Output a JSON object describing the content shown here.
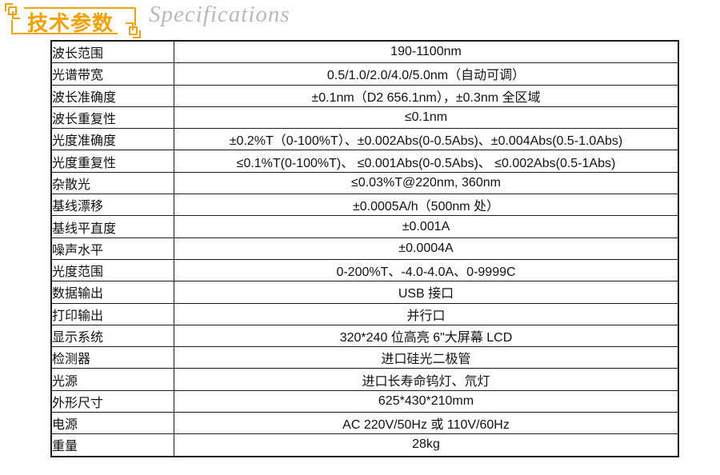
{
  "header": {
    "title": "技术参数",
    "subtitle": "Specifications",
    "accent_color": "#F8A000",
    "subtitle_color": "#b9b9b9"
  },
  "table": {
    "rows": [
      {
        "label": "波长范围",
        "value": "190-1100nm"
      },
      {
        "label": "光谱带宽",
        "value": "0.5/1.0/2.0/4.0/5.0nm（自动可调）"
      },
      {
        "label": "波长准确度",
        "value": "±0.1nm（D2 656.1nm），±0.3nm 全区域"
      },
      {
        "label": "波长重复性",
        "value": "≤0.1nm"
      },
      {
        "label": "光度准确度",
        "value": "±0.2%T（0-100%T）、±0.002Abs(0-0.5Abs)、±0.004Abs(0.5-1.0Abs)"
      },
      {
        "label": "光度重复性",
        "value": "≤0.1%T(0-100%T)、 ≤0.001Abs(0-0.5Abs)、 ≤0.002Abs(0.5-1Abs)"
      },
      {
        "label": "杂散光",
        "value": "≤0.03%T@220nm, 360nm"
      },
      {
        "label": "基线漂移",
        "value": "±0.0005A/h（500nm 处）"
      },
      {
        "label": "基线平直度",
        "value": "±0.001A"
      },
      {
        "label": "噪声水平",
        "value": "±0.0004A"
      },
      {
        "label": "光度范围",
        "value": "0-200%T、-4.0-4.0A、0-9999C"
      },
      {
        "label": "数据输出",
        "value": "USB 接口"
      },
      {
        "label": "打印输出",
        "value": "并行口"
      },
      {
        "label": "显示系统",
        "value": "320*240 位高亮 6\"大屏幕 LCD"
      },
      {
        "label": "检测器",
        "value": "进口硅光二极管"
      },
      {
        "label": "光源",
        "value": "进口长寿命钨灯、氘灯"
      },
      {
        "label": "外形尺寸",
        "value": "625*430*210mm"
      },
      {
        "label": "电源",
        "value": "AC 220V/50Hz 或 110V/60Hz"
      },
      {
        "label": "重量",
        "value": "28kg"
      }
    ]
  }
}
